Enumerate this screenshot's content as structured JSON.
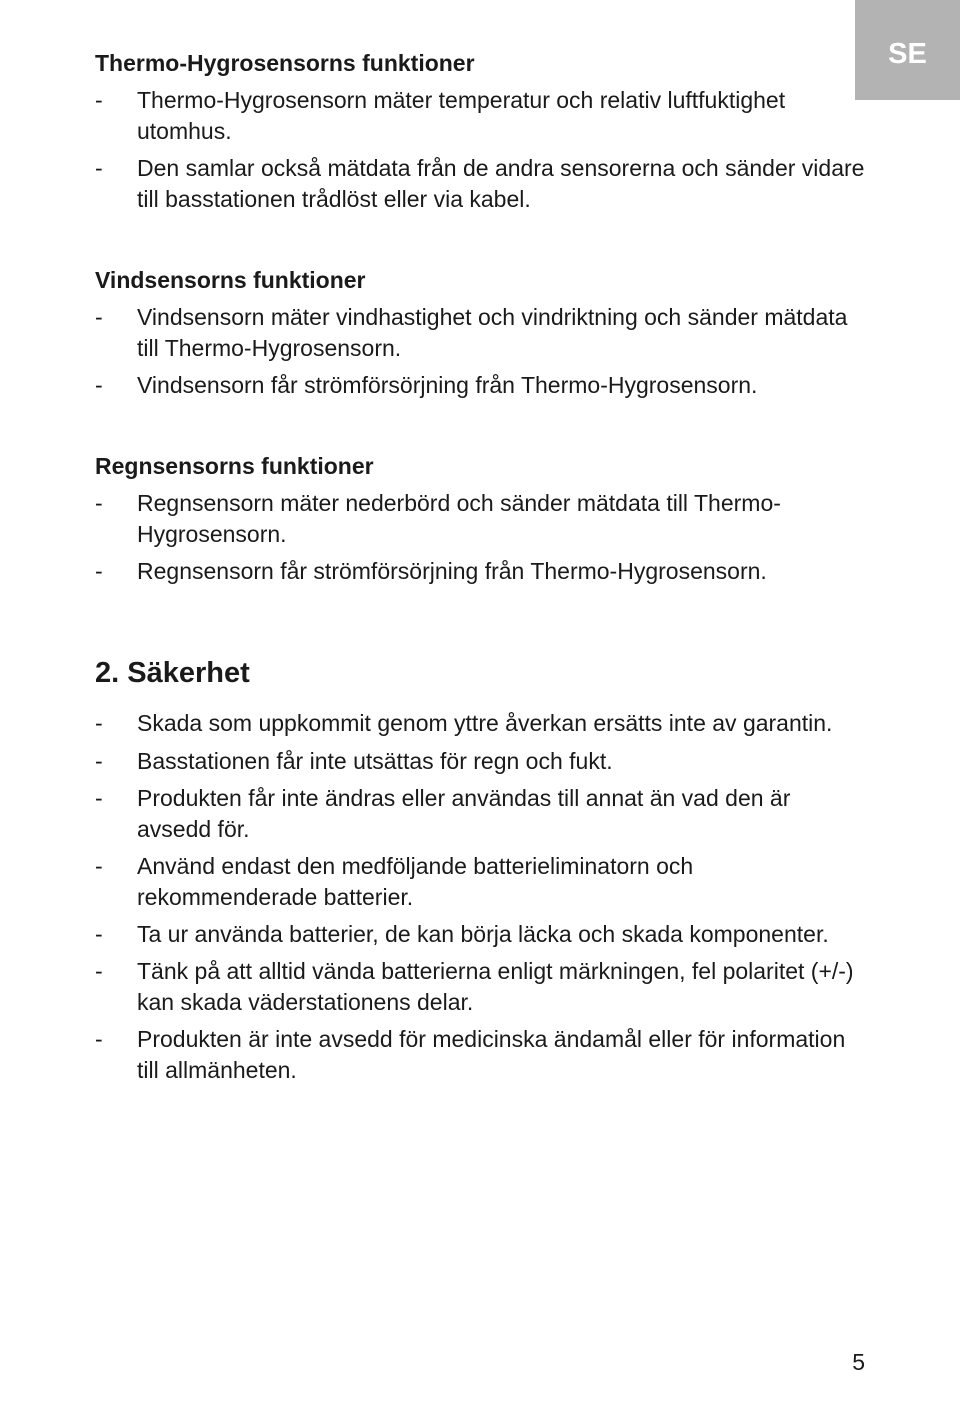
{
  "langTab": "SE",
  "sections": [
    {
      "heading": "Thermo-Hygrosensorns funktioner",
      "items": [
        "Thermo-Hygrosensorn mäter temperatur och relativ luftfuktighet utomhus.",
        "Den samlar också mätdata från de andra sensorerna och sänder vidare till basstationen trådlöst eller via kabel."
      ]
    },
    {
      "heading": "Vindsensorns funktioner",
      "items": [
        "Vindsensorn mäter vindhastighet och vindriktning och sänder mätdata till Thermo-Hygrosensorn.",
        "Vindsensorn får strömförsörjning från Thermo-Hygrosensorn."
      ]
    },
    {
      "heading": "Regnsensorns funktioner",
      "items": [
        "Regnsensorn mäter nederbörd och sänder mätdata till Thermo-Hygrosensorn.",
        "Regnsensorn får strömförsörjning från Thermo-Hygrosensorn."
      ]
    }
  ],
  "mainSection": {
    "heading": "2. Säkerhet",
    "items": [
      "Skada som uppkommit genom yttre åverkan ersätts inte av garantin.",
      "Basstationen får inte utsättas för regn och fukt.",
      "Produkten får inte ändras eller användas till annat än vad den är avsedd för.",
      "Använd endast den medföljande batterieliminatorn och rekommenderade batterier.",
      "Ta ur använda batterier, de kan börja läcka och skada komponenter.",
      "Tänk på att alltid vända batterierna enligt märkningen, fel polaritet (+/-) kan skada väderstationens delar.",
      "Produkten är inte avsedd för medicinska ändamål eller för information till allmänheten."
    ]
  },
  "pageNumber": "5",
  "colors": {
    "tabBg": "#b3b3b3",
    "tabText": "#ffffff",
    "bodyText": "#1a1a1a",
    "pageBg": "#ffffff"
  }
}
